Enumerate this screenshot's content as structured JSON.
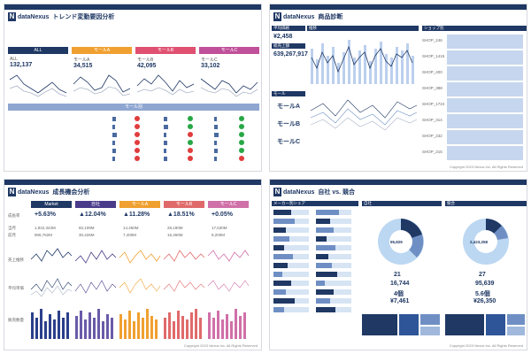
{
  "brand": {
    "logo_letter": "N",
    "name": "dataNexus",
    "copyright": "Copyright 2023 Nexus Inc. All Rights Reserved"
  },
  "p1": {
    "title": "トレンド変動要因分析",
    "bands": [
      {
        "label": "ALL",
        "color": "#1f3864"
      },
      {
        "label": "モールA",
        "color": "#f0a030"
      },
      {
        "label": "モールB",
        "color": "#e05070"
      },
      {
        "label": "モールC",
        "color": "#c0509a"
      }
    ],
    "kpis": [
      {
        "name": "ALL",
        "value": "132,137"
      },
      {
        "name": "モールA",
        "value": "34,515"
      },
      {
        "name": "モールB",
        "value": "42,095"
      },
      {
        "name": "モールC",
        "value": "33,102"
      }
    ],
    "sub_band": "モール別",
    "status_colors": {
      "up": "#27a745",
      "down": "#e03c3c"
    }
  },
  "p2": {
    "title": "商品診断",
    "kpi1": {
      "label": "平均価格",
      "value": "¥2,458"
    },
    "kpi2": {
      "label": "総売上額",
      "value": "639,267,917"
    },
    "chart_title": "推移",
    "shop_header": "ショップ別",
    "shops": [
      "SHOP_246",
      "SHOP_1415",
      "SHOP_400",
      "SHOP_388",
      "SHOP_1724",
      "SHOP_314",
      "SHOP_232",
      "SHOP_215"
    ],
    "mall_header": "モール",
    "malls": [
      "モールA",
      "モールB",
      "モールC"
    ]
  },
  "p3": {
    "title": "成長機会分析",
    "cols": [
      {
        "label": "Market",
        "color": "#1f3864"
      },
      {
        "label": "自社",
        "color": "#4a3a8a"
      },
      {
        "label": "モールA",
        "color": "#f0a030"
      },
      {
        "label": "モールB",
        "color": "#e06a6a"
      },
      {
        "label": "モールC",
        "color": "#d070a8"
      }
    ],
    "growth": [
      "+5.63%",
      "▲12.04%",
      "▲11.28%",
      "▲18.51%",
      "+0.05%"
    ],
    "row1": [
      "1,942,343M",
      "60,109M",
      "14,460M",
      "28,190M",
      "17,530M"
    ],
    "row2": [
      "906,762M",
      "30,426M",
      "7,400M",
      "16,460M",
      "8,200M"
    ],
    "row_labels": [
      "成長率",
      "当月",
      "前月",
      "売上推移",
      "平均単価",
      "販売数量"
    ]
  },
  "p4": {
    "title": "自社 vs. 競合",
    "share_header": "メーカー別シェア",
    "own_header": "自社",
    "comp_header": "競合",
    "own_center": "95,829",
    "comp_center": "2,423,258",
    "own_stats": [
      "21",
      "16,744",
      "4個",
      "¥7,461"
    ],
    "comp_stats": [
      "27",
      "95,639",
      "5.6個",
      "¥26,350"
    ]
  }
}
